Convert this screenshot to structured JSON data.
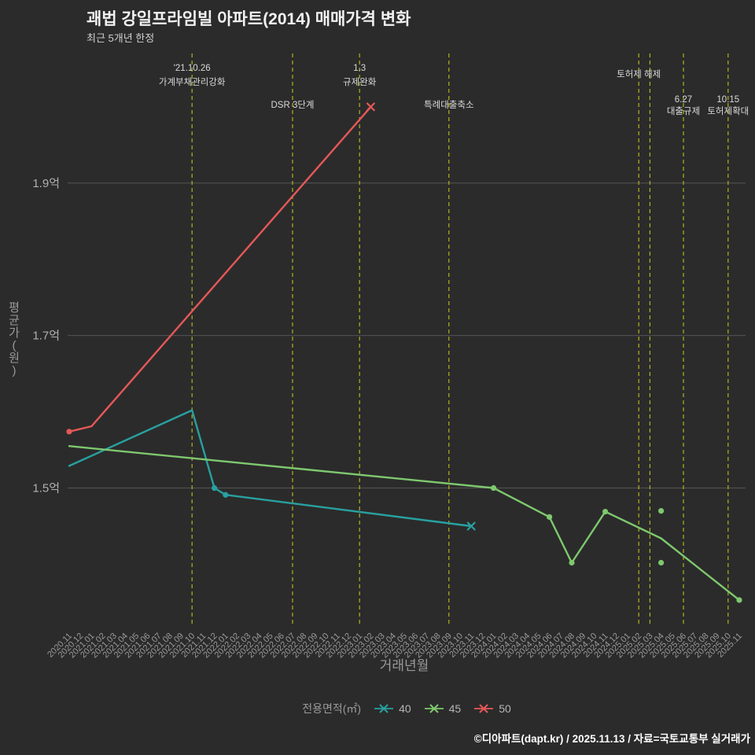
{
  "header": {
    "title": "괘법 강일프라임빌 아파트(2014) 매매가격 변화",
    "subtitle": "최근 5개년 한정"
  },
  "footer": {
    "credit": "©디아파트(dapt.kr) / 2025.11.13 / 자료=국토교통부 실거래가"
  },
  "chart_data": {
    "type": "line",
    "title": "괘법 강일프라임빌 아파트(2014) 매매가격 변화",
    "subtitle": "최근 5개년 한정",
    "xlabel": "거래년월",
    "ylabel": "평균가(원)",
    "y_unit": "억",
    "legend_title": "전용면적(㎡)",
    "legend_position": "bottom",
    "grid": "horizontal-only",
    "ylim": [
      1.32,
      2.07
    ],
    "y_ticks": [
      {
        "value": 1.9,
        "label": "1.9억"
      },
      {
        "value": 1.7,
        "label": "1.7억"
      },
      {
        "value": 1.5,
        "label": "1.5억"
      }
    ],
    "x_categories": [
      "2020.11",
      "2020.12",
      "2021.01",
      "2021.02",
      "2021.03",
      "2021.04",
      "2021.05",
      "2021.06",
      "2021.07",
      "2021.08",
      "2021.09",
      "2021.10",
      "2021.11",
      "2021.12",
      "2022.01",
      "2022.02",
      "2022.03",
      "2022.04",
      "2022.05",
      "2022.06",
      "2022.07",
      "2022.08",
      "2022.09",
      "2022.10",
      "2022.11",
      "2022.12",
      "2023.01",
      "2023.02",
      "2023.03",
      "2023.04",
      "2023.05",
      "2023.06",
      "2023.07",
      "2023.08",
      "2023.09",
      "2023.10",
      "2023.11",
      "2023.12",
      "2024.01",
      "2024.02",
      "2024.03",
      "2024.04",
      "2024.05",
      "2024.06",
      "2024.07",
      "2024.08",
      "2024.09",
      "2024.10",
      "2024.11",
      "2024.12",
      "2025.01",
      "2025.02",
      "2025.03",
      "2025.04",
      "2025.05",
      "2025.06",
      "2025.07",
      "2025.08",
      "2025.09",
      "2025.10",
      "2025.11"
    ],
    "series": [
      {
        "name": "40",
        "color": "#29a0a0",
        "points": [
          [
            "2020.11",
            1.529,
            0
          ],
          [
            "2021.10",
            1.602,
            0
          ],
          [
            "2021.12",
            1.5,
            1
          ],
          [
            "2022.01",
            1.491,
            1
          ],
          [
            "2023.11",
            1.45,
            "x"
          ]
        ]
      },
      {
        "name": "45",
        "color": "#7ec86e",
        "points": [
          [
            "2020.11",
            1.555,
            0
          ],
          [
            "2024.01",
            1.5,
            1
          ],
          [
            "2024.06",
            1.462,
            1
          ],
          [
            "2024.08",
            1.402,
            1
          ],
          [
            "2024.11",
            1.469,
            1
          ],
          [
            "2025.04",
            1.434,
            0
          ],
          [
            "2025.11",
            1.353,
            1
          ]
        ],
        "extra_points": [
          [
            "2025.04",
            1.47
          ],
          [
            "2025.04",
            1.402
          ]
        ]
      },
      {
        "name": "50",
        "color": "#e65858",
        "points": [
          [
            "2020.11",
            1.574,
            1
          ],
          [
            "2021.01",
            1.581,
            0
          ],
          [
            "2023.02",
            2.0,
            "x"
          ]
        ]
      }
    ],
    "events": [
      {
        "month": "2021.10",
        "lines": [
          "'21.10.26",
          "가계부채관리강화"
        ],
        "label_ys": [
          90,
          108
        ]
      },
      {
        "month": "2022.07",
        "lines": [
          "DSR 3단계"
        ],
        "label_ys": [
          137
        ]
      },
      {
        "month": "2023.01",
        "lines": [
          "1.3",
          "규제완화"
        ],
        "label_ys": [
          90,
          108
        ]
      },
      {
        "month": "2023.09",
        "lines": [
          "특례대출축소"
        ],
        "label_ys": [
          137
        ]
      },
      {
        "month": "2025.02",
        "lines": [
          "토허제 해제"
        ],
        "label_ys": [
          98
        ]
      },
      {
        "month": "2025.03",
        "lines": [],
        "label_ys": []
      },
      {
        "month": "2025.06",
        "lines": [
          "6.27",
          "대출규제"
        ],
        "label_ys": [
          130,
          145
        ]
      },
      {
        "month": "2025.10",
        "lines": [
          "10.15",
          "토허제확대"
        ],
        "label_ys": [
          130,
          145
        ]
      }
    ],
    "colors": {
      "background": "#2b2b2b",
      "grid": "#555555",
      "tick_label": "#9a9a9a",
      "y_tick_label": "#b0b0b0",
      "axis_label": "#9a9a9a",
      "annotation": "#d9d9d9",
      "event_line": "#b2b21f"
    }
  }
}
